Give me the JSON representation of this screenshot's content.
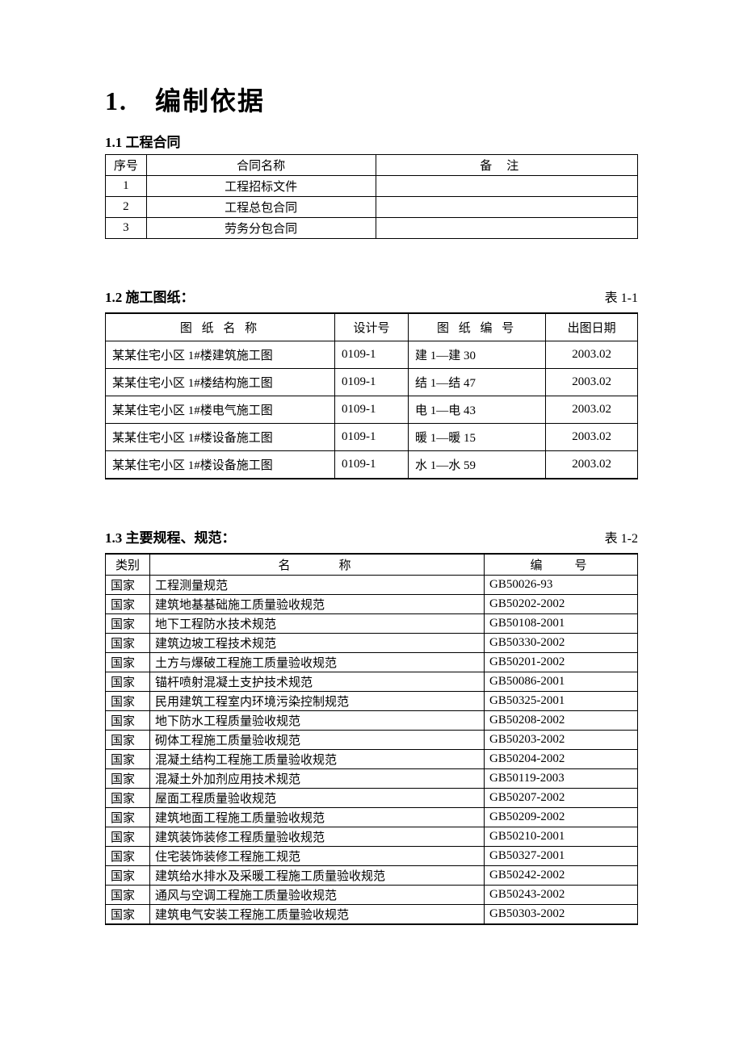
{
  "headings": {
    "main": "1.　编制依据",
    "s1": "1.1 工程合同",
    "s2": "1.2 施工图纸：",
    "s2_label": "表 1-1",
    "s3": "1.3 主要规程、规范：",
    "s3_label": "表 1-2"
  },
  "table1": {
    "columns": [
      "序号",
      "合同名称",
      "备注"
    ],
    "rows": [
      [
        "1",
        "工程招标文件",
        ""
      ],
      [
        "2",
        "工程总包合同",
        ""
      ],
      [
        "3",
        "劳务分包合同",
        ""
      ]
    ]
  },
  "table2": {
    "columns": [
      "图 纸 名 称",
      "设计号",
      "图 纸 编 号",
      "出图日期"
    ],
    "rows": [
      [
        "某某住宅小区 1#楼建筑施工图",
        "0109-1",
        "建 1—建 30",
        "2003.02"
      ],
      [
        "某某住宅小区 1#楼结构施工图",
        "0109-1",
        "结 1—结 47",
        "2003.02"
      ],
      [
        "某某住宅小区 1#楼电气施工图",
        "0109-1",
        "电 1—电 43",
        "2003.02"
      ],
      [
        "某某住宅小区 1#楼设备施工图",
        "0109-1",
        "暖 1—暖 15",
        "2003.02"
      ],
      [
        "某某住宅小区 1#楼设备施工图",
        "0109-1",
        "水 1—水 59",
        "2003.02"
      ]
    ]
  },
  "table3": {
    "columns": [
      "类别",
      "名称",
      "编号"
    ],
    "rows": [
      [
        "国家",
        "工程测量规范",
        "GB50026-93"
      ],
      [
        "国家",
        "建筑地基基础施工质量验收规范",
        "GB50202-2002"
      ],
      [
        "国家",
        "地下工程防水技术规范",
        "GB50108-2001"
      ],
      [
        "国家",
        "建筑边坡工程技术规范",
        "GB50330-2002"
      ],
      [
        "国家",
        "土方与爆破工程施工质量验收规范",
        "GB50201-2002"
      ],
      [
        "国家",
        "锚杆喷射混凝土支护技术规范",
        "GB50086-2001"
      ],
      [
        "国家",
        "民用建筑工程室内环境污染控制规范",
        "GB50325-2001"
      ],
      [
        "国家",
        "地下防水工程质量验收规范",
        "GB50208-2002"
      ],
      [
        "国家",
        "砌体工程施工质量验收规范",
        "GB50203-2002"
      ],
      [
        "国家",
        "混凝土结构工程施工质量验收规范",
        "GB50204-2002"
      ],
      [
        "国家",
        "混凝土外加剂应用技术规范",
        "GB50119-2003"
      ],
      [
        "国家",
        "屋面工程质量验收规范",
        "GB50207-2002"
      ],
      [
        "国家",
        "建筑地面工程施工质量验收规范",
        "GB50209-2002"
      ],
      [
        "国家",
        "建筑装饰装修工程质量验收规范",
        "GB50210-2001"
      ],
      [
        "国家",
        "住宅装饰装修工程施工规范",
        "GB50327-2001"
      ],
      [
        "国家",
        "建筑给水排水及采暖工程施工质量验收规范",
        "GB50242-2002"
      ],
      [
        "国家",
        "通风与空调工程施工质量验收规范",
        "GB50243-2002"
      ],
      [
        "国家",
        "建筑电气安装工程施工质量验收规范",
        "GB50303-2002"
      ]
    ]
  }
}
